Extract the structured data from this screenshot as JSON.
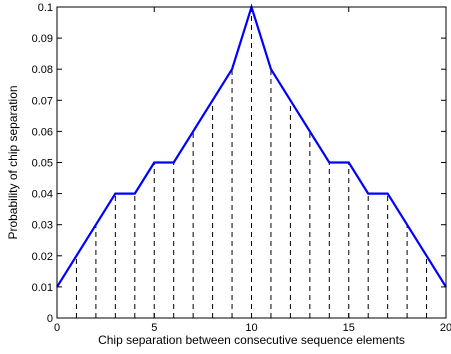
{
  "chart_data": {
    "type": "line",
    "xlabel": "Chip separation between consecutive sequence elements",
    "ylabel": "Probability of chip separation",
    "xlim": [
      0,
      20
    ],
    "ylim": [
      0,
      0.1
    ],
    "xticks": [
      0,
      5,
      10,
      15,
      20
    ],
    "xtick_labels": [
      "0",
      "5",
      "10",
      "15",
      "20"
    ],
    "yticks": [
      0,
      0.01,
      0.02,
      0.03,
      0.04,
      0.05,
      0.06,
      0.07,
      0.08,
      0.09,
      0.1
    ],
    "ytick_labels": [
      "0",
      "0.01",
      "0.02",
      "0.03",
      "0.04",
      "0.05",
      "0.06",
      "0.07",
      "0.08",
      "0.09",
      "0.1"
    ],
    "grid": false,
    "x": [
      0,
      1,
      2,
      3,
      4,
      5,
      6,
      7,
      8,
      9,
      10,
      11,
      12,
      13,
      14,
      15,
      16,
      17,
      18,
      19,
      20
    ],
    "series": [
      {
        "values": [
          0.01,
          0.02,
          0.03,
          0.04,
          0.04,
          0.05,
          0.05,
          0.06,
          0.07,
          0.08,
          0.1,
          0.08,
          0.07,
          0.06,
          0.05,
          0.05,
          0.04,
          0.04,
          0.03,
          0.02,
          0.01
        ],
        "color": "#0000ff",
        "style": "solid"
      }
    ],
    "stems": {
      "values": [
        0.01,
        0.02,
        0.03,
        0.04,
        0.04,
        0.05,
        0.05,
        0.06,
        0.07,
        0.08,
        0.1,
        0.08,
        0.07,
        0.06,
        0.05,
        0.05,
        0.04,
        0.04,
        0.03,
        0.02,
        0.01
      ],
      "color": "#000000",
      "style": "dashed"
    }
  }
}
